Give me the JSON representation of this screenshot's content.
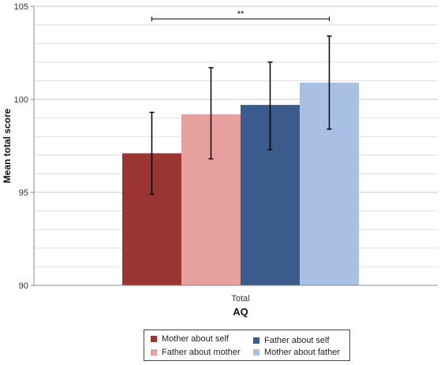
{
  "chart_data": {
    "type": "bar",
    "ylabel": "Mean total score",
    "xlabel": "AQ",
    "categories": [
      "Total"
    ],
    "ylim": [
      90,
      105
    ],
    "yticks": [
      90,
      95,
      100,
      105
    ],
    "grid": true,
    "legend_position": "bottom",
    "series": [
      {
        "name": "Mother about self",
        "color": "#9b3532",
        "value": 97.1,
        "error_low": 94.9,
        "error_high": 99.3
      },
      {
        "name": "Father about mother",
        "color": "#e6a19f",
        "value": 99.2,
        "error_low": 96.8,
        "error_high": 101.7
      },
      {
        "name": "Father about self",
        "color": "#3b5b8c",
        "value": 99.7,
        "error_low": 97.3,
        "error_high": 102.0
      },
      {
        "name": "Mother about father",
        "color": "#a9bfe3",
        "value": 100.9,
        "error_low": 98.4,
        "error_high": 103.4
      }
    ],
    "annotations": [
      {
        "text": "**",
        "from_series": 0,
        "to_series": 3
      }
    ]
  }
}
